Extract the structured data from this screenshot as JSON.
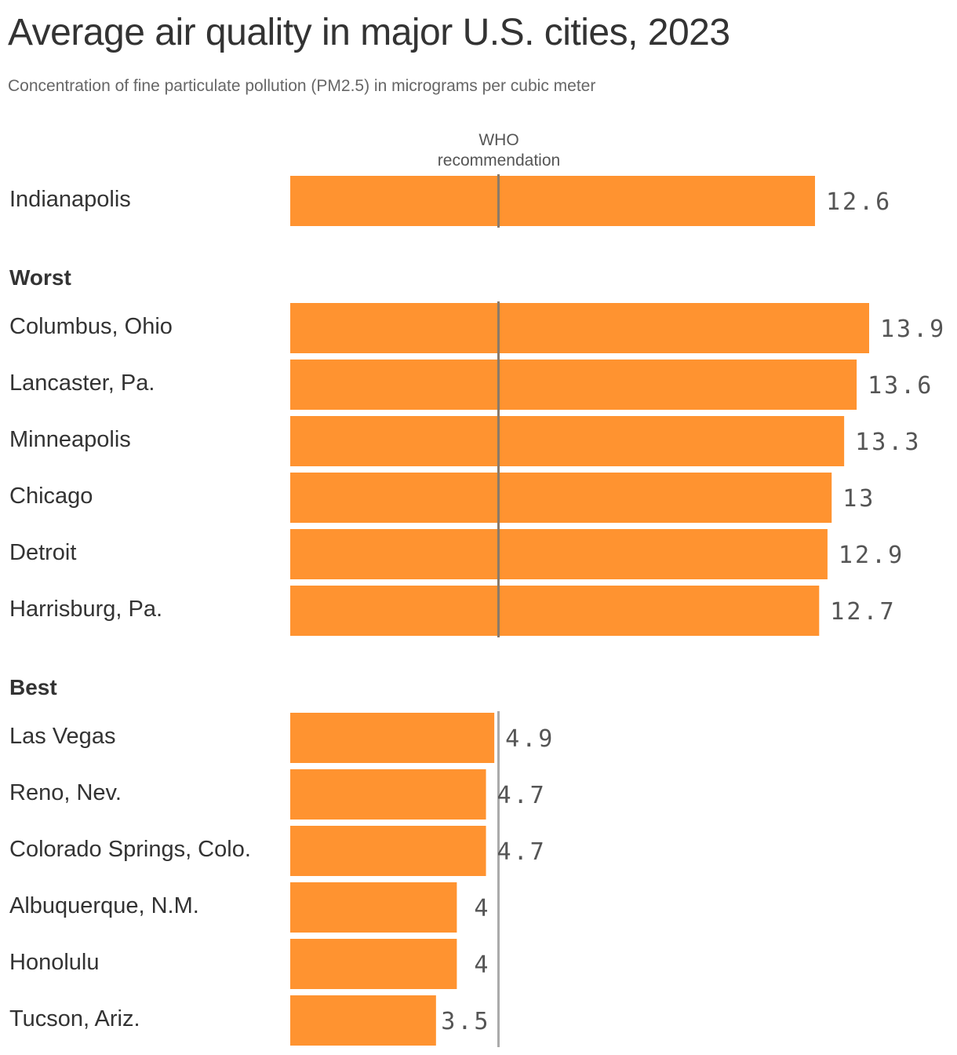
{
  "chart_data": {
    "type": "bar",
    "orientation": "horizontal",
    "title": "Average air quality in major U.S. cities, 2023",
    "subtitle": "Concentration of fine particulate pollution (PM2.5) in micrograms per cubic meter",
    "xlabel": "",
    "ylabel": "",
    "xlim": [
      0,
      13.9
    ],
    "grid": false,
    "reference_line": {
      "label_lines": [
        "WHO",
        "recommendation"
      ],
      "value": 5
    },
    "bar_color": "#ff9330",
    "groups": [
      {
        "label": "",
        "rows": [
          {
            "category": "Indianapolis",
            "value": 12.6,
            "value_label": "12.6"
          }
        ]
      },
      {
        "label": "Worst",
        "rows": [
          {
            "category": "Columbus, Ohio",
            "value": 13.9,
            "value_label": "13.9"
          },
          {
            "category": "Lancaster, Pa.",
            "value": 13.6,
            "value_label": "13.6"
          },
          {
            "category": "Minneapolis",
            "value": 13.3,
            "value_label": "13.3"
          },
          {
            "category": "Chicago",
            "value": 13,
            "value_label": "13"
          },
          {
            "category": "Detroit",
            "value": 12.9,
            "value_label": "12.9"
          },
          {
            "category": "Harrisburg, Pa.",
            "value": 12.7,
            "value_label": "12.7"
          }
        ]
      },
      {
        "label": "Best",
        "rows": [
          {
            "category": "Las Vegas",
            "value": 4.9,
            "value_label": "4.9"
          },
          {
            "category": "Reno, Nev.",
            "value": 4.7,
            "value_label": "4.7"
          },
          {
            "category": "Colorado Springs, Colo.",
            "value": 4.7,
            "value_label": "4.7"
          },
          {
            "category": "Albuquerque, N.M.",
            "value": 4,
            "value_label": "4"
          },
          {
            "category": "Honolulu",
            "value": 4,
            "value_label": "4"
          },
          {
            "category": "Tucson, Ariz.",
            "value": 3.5,
            "value_label": "3.5"
          }
        ]
      }
    ]
  }
}
